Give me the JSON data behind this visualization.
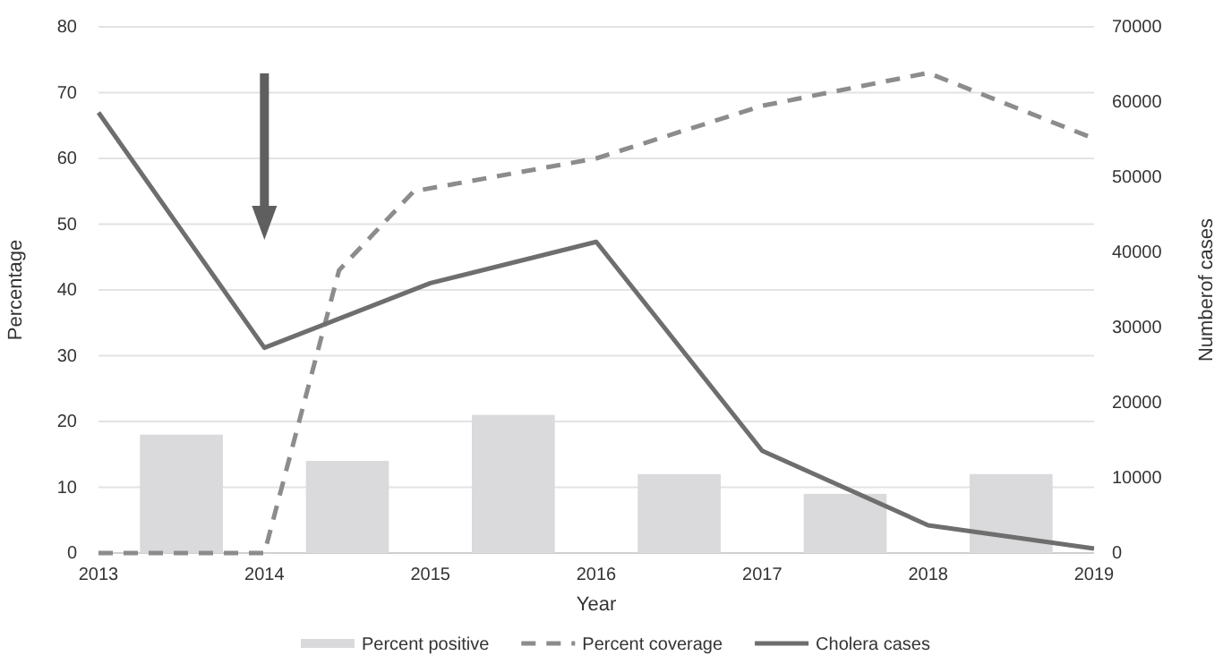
{
  "chart_data": {
    "type": "line",
    "xlabel": "Year",
    "ylabel": "Percentage",
    "y2label": "Numberof cases",
    "xlim": [
      2013,
      2019
    ],
    "xticks": [
      2013,
      2014,
      2015,
      2016,
      2017,
      2018,
      2019
    ],
    "ylim": [
      0,
      80
    ],
    "yticks": [
      0,
      10,
      20,
      30,
      40,
      50,
      60,
      70,
      80
    ],
    "y2lim": [
      0,
      70000
    ],
    "y2ticks": [
      0,
      10000,
      20000,
      30000,
      40000,
      50000,
      60000,
      70000
    ],
    "grid": "y",
    "legend": "bottom",
    "series": [
      {
        "name": "Percent positive",
        "type": "bar",
        "color": "#dadadc",
        "x": [
          2013.5,
          2014.5,
          2015.5,
          2016.5,
          2017.5,
          2018.5
        ],
        "values": [
          18,
          14,
          21,
          12,
          9,
          12
        ]
      },
      {
        "name": "Percent coverage",
        "line_style": "dashed",
        "color": "#8c8c8c",
        "x": [
          2013,
          2014,
          2014.45,
          2014.9,
          2016,
          2017,
          2018,
          2019
        ],
        "values": [
          0,
          0,
          43,
          55,
          60,
          68,
          73,
          63
        ]
      },
      {
        "name": "Cholera cases",
        "line_style": "solid",
        "axis": "y2",
        "color": "#6e6e6e",
        "x": [
          2013,
          2014,
          2015,
          2016,
          2017,
          2018,
          2019
        ],
        "values": [
          58600,
          27300,
          35900,
          41400,
          13600,
          3700,
          600
        ]
      }
    ]
  }
}
